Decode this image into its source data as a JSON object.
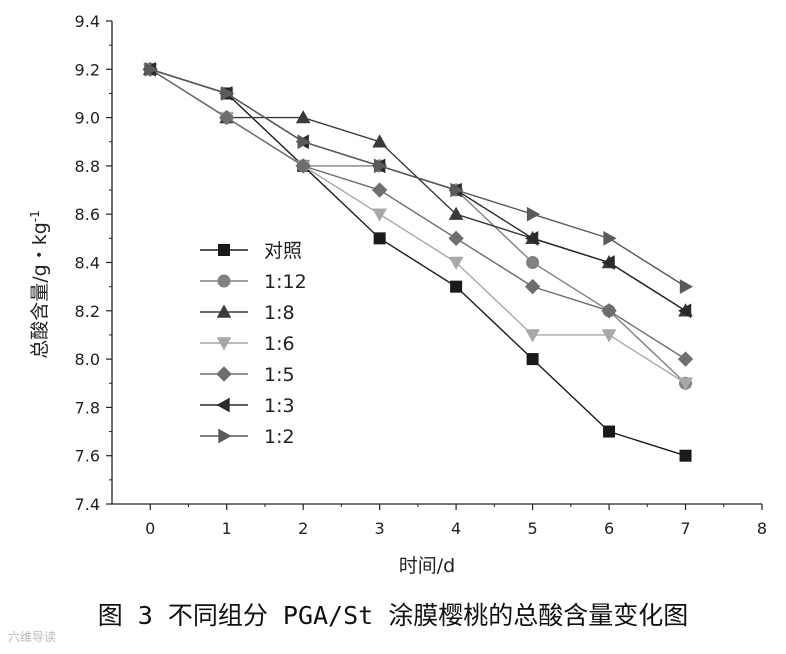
{
  "chart_data": {
    "type": "line",
    "title": "",
    "xlabel": "时间/d",
    "ylabel_main": "总酸含量/g・kg",
    "ylabel_sup": "-1",
    "xlim": [
      -0.5,
      8
    ],
    "ylim": [
      7.4,
      9.4
    ],
    "xticks": [
      0,
      1,
      2,
      3,
      4,
      5,
      6,
      7,
      8
    ],
    "yticks": [
      7.4,
      7.6,
      7.8,
      8.0,
      8.2,
      8.4,
      8.6,
      8.8,
      9.0,
      9.2,
      9.4
    ],
    "x": [
      0,
      1,
      2,
      3,
      4,
      5,
      6,
      7
    ],
    "legend_position": "left-middle",
    "series": [
      {
        "name": "对照",
        "marker": "square",
        "color": "#1a1a1a",
        "values": [
          9.2,
          9.1,
          8.8,
          8.5,
          8.3,
          8.0,
          7.7,
          7.6
        ]
      },
      {
        "name": "1:12",
        "marker": "circle",
        "color": "#808080",
        "values": [
          9.2,
          9.0,
          8.8,
          8.8,
          8.7,
          8.4,
          8.2,
          7.9
        ]
      },
      {
        "name": "1:8",
        "marker": "triangle-up",
        "color": "#3a3a3a",
        "values": [
          9.2,
          9.0,
          9.0,
          8.9,
          8.6,
          8.5,
          8.4,
          8.2
        ]
      },
      {
        "name": "1:6",
        "marker": "triangle-down",
        "color": "#a8a8a8",
        "values": [
          9.2,
          9.0,
          8.8,
          8.6,
          8.4,
          8.1,
          8.1,
          7.9
        ]
      },
      {
        "name": "1:5",
        "marker": "diamond",
        "color": "#6e6e6e",
        "values": [
          9.2,
          9.0,
          8.8,
          8.7,
          8.5,
          8.3,
          8.2,
          8.0
        ]
      },
      {
        "name": "1:3",
        "marker": "triangle-left",
        "color": "#2a2a2a",
        "values": [
          9.2,
          9.1,
          8.9,
          8.8,
          8.7,
          8.5,
          8.4,
          8.2
        ]
      },
      {
        "name": "1:2",
        "marker": "triangle-right",
        "color": "#5a5a5a",
        "values": [
          9.2,
          9.1,
          8.9,
          8.8,
          8.7,
          8.6,
          8.5,
          8.3
        ]
      }
    ]
  },
  "caption": "图 3  不同组分 PGA/St 涂膜樱桃的总酸含量变化图",
  "watermark": "六维导读"
}
